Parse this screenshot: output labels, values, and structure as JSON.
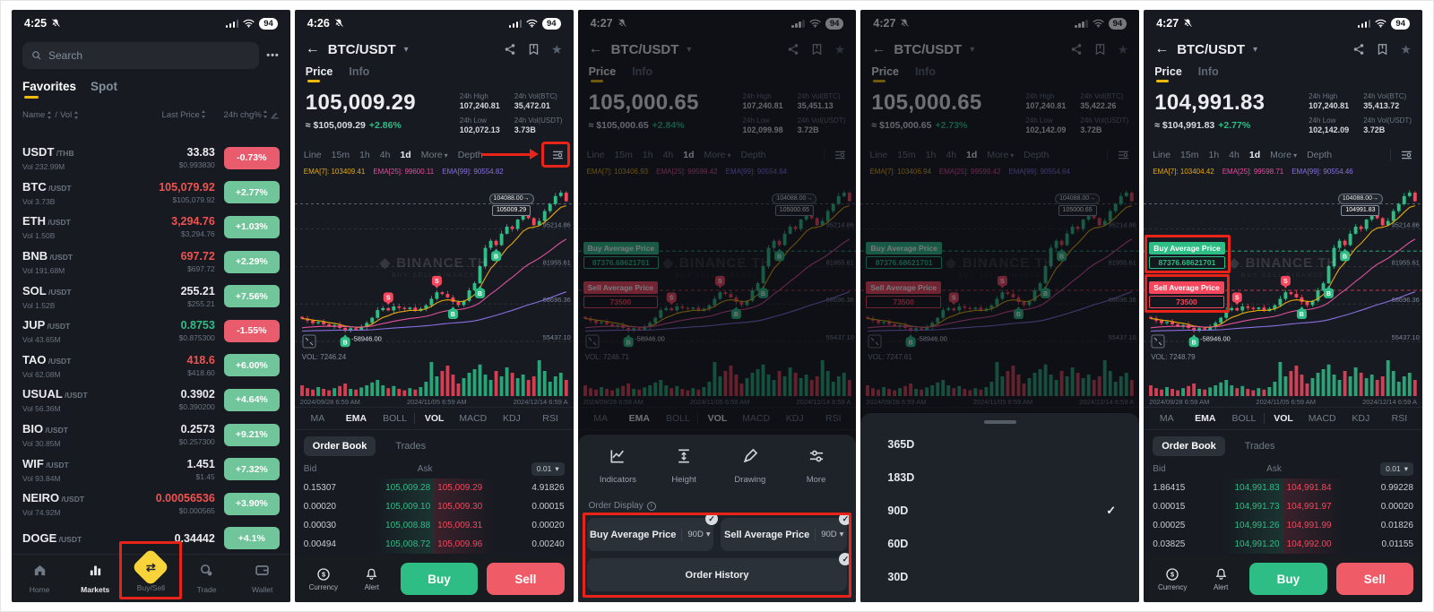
{
  "icons": {
    "check": "✓",
    "star": "★",
    "back": "←",
    "caret_down": "▾",
    "dots": "•••",
    "arrow_right": "→",
    "diamond": "◆",
    "info": "i",
    "swap": "⇄"
  },
  "colors": {
    "green": "#2ebd85",
    "red": "#f6465d",
    "yellow": "#f0b90b",
    "badge_green": "#70c59a",
    "badge_red": "#e95c6d",
    "annotation": "#e8231a",
    "ema7": "#e7a80c",
    "ema25": "#e0519e",
    "ema99": "#8a6fe0"
  },
  "chart_shared": {
    "type": "candlestick",
    "x_labels": [
      "2024/09/28 6:59 AM",
      "2024/11/05 6:59 AM",
      "2024/12/14 6:59 A"
    ],
    "axis_labels": [
      "95214.86",
      "81955.61",
      "68696.36",
      "55437.10"
    ],
    "axis_values": [
      95214.86,
      81955.61,
      68696.36,
      55437.1
    ],
    "tag_high": "104088.00",
    "tag_high_value": 104088,
    "low_annotation": "-58946.00",
    "watermark_title": "BINANCE TH",
    "watermark_sub": "BUY SELL BINANCE",
    "y_domain": [
      54500,
      111500
    ],
    "closes": [
      63500,
      62800,
      61900,
      62300,
      61500,
      60800,
      61200,
      60200,
      59200,
      60100,
      59600,
      60500,
      62000,
      63800,
      66500,
      67200,
      66400,
      67800,
      67300,
      66900,
      67400,
      66200,
      67000,
      68200,
      70500,
      72800,
      72200,
      71000,
      69400,
      68300,
      69800,
      73500,
      76000,
      82000,
      88500,
      91000,
      89500,
      93500,
      96000,
      95200,
      98500,
      101000,
      99000,
      96500,
      98000,
      101500,
      104000,
      106800,
      108000,
      105000
    ],
    "volumes": [
      0.3,
      0.22,
      0.18,
      0.25,
      0.2,
      0.16,
      0.22,
      0.28,
      0.35,
      0.2,
      0.18,
      0.24,
      0.3,
      0.38,
      0.45,
      0.3,
      0.22,
      0.28,
      0.2,
      0.16,
      0.22,
      0.18,
      0.25,
      0.4,
      0.95,
      0.55,
      0.7,
      0.85,
      0.6,
      0.35,
      0.5,
      0.65,
      0.75,
      0.88,
      0.6,
      0.45,
      0.7,
      0.55,
      0.8,
      0.65,
      0.5,
      0.6,
      0.45,
      0.55,
      1.0,
      0.7,
      0.4,
      0.55,
      0.65,
      0.45
    ],
    "markers": [
      {
        "index": 8,
        "type": "B"
      },
      {
        "index": 16,
        "type": "S"
      },
      {
        "index": 25,
        "type": "S"
      },
      {
        "index": 28,
        "type": "B"
      },
      {
        "index": 33,
        "type": "B"
      },
      {
        "index": 36,
        "type": "B"
      }
    ]
  },
  "chart_ui": {
    "pair": "BTC/USDT",
    "tabs": [
      "Price",
      "Info"
    ],
    "timeframes": [
      "Line",
      "15m",
      "1h",
      "4h",
      "1d",
      "More",
      "Depth"
    ],
    "active_timeframe": "1d",
    "stats_labels": [
      "24h High",
      "24h Vol(BTC)",
      "24h Low",
      "24h Vol(USDT)"
    ],
    "indicator_tabs": [
      "MA",
      "EMA",
      "BOLL",
      "VOL",
      "MACD",
      "KDJ",
      "RSI"
    ],
    "orderbook_tabs": [
      "Order Book",
      "Trades"
    ],
    "bid_label": "Bid",
    "ask_label": "Ask",
    "precision": "0.01",
    "footer": {
      "currency": "Currency",
      "alert": "Alert",
      "buy": "Buy",
      "sell": "Sell"
    }
  },
  "phones": [
    {
      "type": "markets",
      "status": {
        "time": "4:25",
        "battery": "94"
      },
      "search": {
        "placeholder": "Search"
      },
      "tabs": [
        {
          "label": "Favorites",
          "active": true
        },
        {
          "label": "Spot",
          "active": false
        }
      ],
      "table_header": {
        "name": "Name",
        "sep": "/",
        "vol": "Vol",
        "last_price": "Last Price",
        "chg": "24h chg%"
      },
      "rows": [
        {
          "symbol": "USDT",
          "pair": "/THB",
          "vol": "Vol 232.99M",
          "price": "33.83",
          "usd": "$0.993830",
          "chg": "-0.73%",
          "price_color": "white",
          "chg_dir": "down"
        },
        {
          "symbol": "BTC",
          "pair": "/USDT",
          "vol": "Vol 3.73B",
          "price": "105,079.92",
          "usd": "$105,079.92",
          "chg": "+2.77%",
          "price_color": "red",
          "chg_dir": "up"
        },
        {
          "symbol": "ETH",
          "pair": "/USDT",
          "vol": "Vol 1.50B",
          "price": "3,294.76",
          "usd": "$3,294.76",
          "chg": "+1.03%",
          "price_color": "red",
          "chg_dir": "up"
        },
        {
          "symbol": "BNB",
          "pair": "/USDT",
          "vol": "Vol 191.68M",
          "price": "697.72",
          "usd": "$697.72",
          "chg": "+2.29%",
          "price_color": "red",
          "chg_dir": "up"
        },
        {
          "symbol": "SOL",
          "pair": "/USDT",
          "vol": "Vol 1.52B",
          "price": "255.21",
          "usd": "$255.21",
          "chg": "+7.56%",
          "price_color": "white",
          "chg_dir": "up"
        },
        {
          "symbol": "JUP",
          "pair": "/USDT",
          "vol": "Vol 43.65M",
          "price": "0.8753",
          "usd": "$0.875300",
          "chg": "-1.55%",
          "price_color": "green",
          "chg_dir": "down"
        },
        {
          "symbol": "TAO",
          "pair": "/USDT",
          "vol": "Vol 62.08M",
          "price": "418.6",
          "usd": "$418.60",
          "chg": "+6.00%",
          "price_color": "red",
          "chg_dir": "up"
        },
        {
          "symbol": "USUAL",
          "pair": "/USDT",
          "vol": "Vol 56.36M",
          "price": "0.3902",
          "usd": "$0.390200",
          "chg": "+4.64%",
          "price_color": "white",
          "chg_dir": "up"
        },
        {
          "symbol": "BIO",
          "pair": "/USDT",
          "vol": "Vol 30.85M",
          "price": "0.2573",
          "usd": "$0.257300",
          "chg": "+9.21%",
          "price_color": "white",
          "chg_dir": "up"
        },
        {
          "symbol": "WIF",
          "pair": "/USDT",
          "vol": "Vol 93.84M",
          "price": "1.451",
          "usd": "$1.45",
          "chg": "+7.32%",
          "price_color": "white",
          "chg_dir": "up"
        },
        {
          "symbol": "NEIRO",
          "pair": "/USDT",
          "vol": "Vol 74.92M",
          "price": "0.00056536",
          "usd": "$0.000565",
          "chg": "+3.90%",
          "price_color": "red",
          "chg_dir": "up"
        },
        {
          "symbol": "DOGE",
          "pair": "/USDT",
          "vol": "",
          "price": "0.34442",
          "usd": "",
          "chg": "+4.1%",
          "price_color": "white",
          "chg_dir": "up"
        }
      ],
      "nav": [
        {
          "label": "Home",
          "icon": "home-icon"
        },
        {
          "label": "Markets",
          "icon": "markets-icon",
          "active": true
        },
        {
          "label": "Buy/Sell",
          "icon": "buy-sell-icon",
          "accent": true,
          "annotated": true
        },
        {
          "label": "Trade",
          "icon": "trade-icon"
        },
        {
          "label": "Wallet",
          "icon": "wallet-icon"
        }
      ]
    },
    {
      "type": "chart",
      "status": {
        "time": "4:26",
        "battery": "94"
      },
      "price": "105,009.29",
      "price_style": "white",
      "approx": "≈ $105,009.29",
      "change": "+2.86%",
      "stats": [
        "107,240.81",
        "35,472.01",
        "102,072.13",
        "3.73B"
      ],
      "ema_legend": [
        {
          "label": "EMA[7]:",
          "value": "103409.41"
        },
        {
          "label": "EMA[25]:",
          "value": "99600.11"
        },
        {
          "label": "EMA[99]:",
          "value": "90554.82"
        }
      ],
      "tag_price": "105009.29",
      "vol_label": "VOL: 7246.24",
      "orderbook_rows": [
        [
          "0.15307",
          "105,009.28",
          "105,009.29",
          "4.91826"
        ],
        [
          "0.00020",
          "105,009.10",
          "105,009.30",
          "0.00015"
        ],
        [
          "0.00030",
          "105,008.88",
          "105,009.31",
          "0.00020"
        ],
        [
          "0.00494",
          "105,008.72",
          "105,009.96",
          "0.00240"
        ]
      ],
      "annotations": {
        "settings_box": true,
        "settings_arrow": true
      }
    },
    {
      "type": "chart",
      "status": {
        "time": "4:27",
        "battery": "94"
      },
      "price": "105,000.65",
      "price_style": "green",
      "approx": "≈ $105,000.65",
      "change": "+2.84%",
      "stats": [
        "107,240.81",
        "35,451.13",
        "102,099.98",
        "3.72B"
      ],
      "ema_legend": [
        {
          "label": "EMA[7]:",
          "value": "103406.93"
        },
        {
          "label": "EMA[25]:",
          "value": "99599.42"
        },
        {
          "label": "EMA[99]:",
          "value": "90554.64"
        }
      ],
      "tag_price": "105000.65",
      "vol_label": "VOL: 7246.71",
      "avg": {
        "buy_title": "Buy Average Price",
        "buy_value": "87376.68621701",
        "sell_title": "Sell Average Price",
        "sell_value": "73500"
      },
      "dimmed": true,
      "sheet": {
        "kind": "display",
        "icons": [
          {
            "label": "Indicators",
            "icon": "indicators-icon"
          },
          {
            "label": "Height",
            "icon": "height-icon"
          },
          {
            "label": "Drawing",
            "icon": "drawing-icon"
          },
          {
            "label": "More",
            "icon": "more-icon"
          }
        ],
        "section": "Order Display",
        "buttons": [
          {
            "label": "Buy Average Price",
            "period": "90D"
          },
          {
            "label": "Sell Average Price",
            "period": "90D"
          },
          {
            "label": "Order History"
          }
        ],
        "annotated": true
      }
    },
    {
      "type": "chart",
      "status": {
        "time": "4:27",
        "battery": "94"
      },
      "price": "105,000.65",
      "price_style": "white",
      "approx": "≈ $105,000.65",
      "change": "+2.73%",
      "stats": [
        "107,240.81",
        "35,422.26",
        "102,142.09",
        "3.72B"
      ],
      "ema_legend": [
        {
          "label": "EMA[7]:",
          "value": "103406.94"
        },
        {
          "label": "EMA[25]:",
          "value": "99599.42"
        },
        {
          "label": "EMA[99]:",
          "value": "90554.64"
        }
      ],
      "tag_price": "105000.65",
      "vol_label": "VOL: 7247.61",
      "avg": {
        "buy_title": "Buy Average Price",
        "buy_value": "87376.68621701",
        "sell_title": "Sell Average Price",
        "sell_value": "73500"
      },
      "dimmed": true,
      "sheet": {
        "kind": "periods",
        "options": [
          "365D",
          "183D",
          "90D",
          "60D",
          "30D"
        ],
        "selected": "90D"
      }
    },
    {
      "type": "chart",
      "status": {
        "time": "4:27",
        "battery": "94"
      },
      "price": "104,991.83",
      "price_style": "white",
      "approx": "≈ $104,991.83",
      "change": "+2.77%",
      "stats": [
        "107,240.81",
        "35,413.72",
        "102,142.09",
        "3.72B"
      ],
      "ema_legend": [
        {
          "label": "EMA[7]:",
          "value": "103404.42"
        },
        {
          "label": "EMA[25]:",
          "value": "99598.71"
        },
        {
          "label": "EMA[99]:",
          "value": "90554.46"
        }
      ],
      "tag_price": "104991.83",
      "vol_label": "VOL: 7248.79",
      "avg": {
        "buy_title": "Buy Average Price",
        "buy_value": "87376.68621701",
        "sell_title": "Sell Average Price",
        "sell_value": "73500",
        "annotated": true
      },
      "orderbook_rows": [
        [
          "1.86415",
          "104,991.83",
          "104,991.84",
          "0.99228"
        ],
        [
          "0.00015",
          "104,991.73",
          "104,991.97",
          "0.00020"
        ],
        [
          "0.00025",
          "104,991.26",
          "104,991.99",
          "0.01826"
        ],
        [
          "0.03825",
          "104,991.20",
          "104,992.00",
          "0.01155"
        ]
      ]
    }
  ]
}
